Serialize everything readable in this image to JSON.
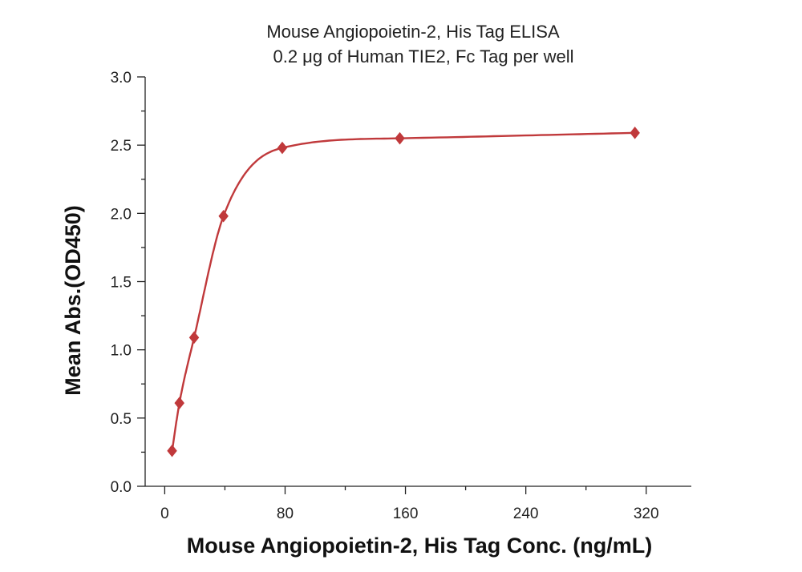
{
  "chart_data": {
    "type": "scatter",
    "title": "Mouse Angiopoietin-2, His Tag ELISA",
    "subtitle": "0.2 μg of Human TIE2, Fc Tag per well",
    "xlabel": "Mouse Angiopoietin-2, His Tag Conc. (ng/mL)",
    "ylabel": "Mean Abs.(OD450)",
    "xlim": [
      -13,
      350
    ],
    "ylim": [
      0,
      3.0
    ],
    "x_ticks": [
      0,
      80,
      160,
      240,
      320
    ],
    "y_ticks": [
      0.0,
      0.5,
      1.0,
      1.5,
      2.0,
      2.5,
      3.0
    ],
    "x_tick_labels": [
      "0",
      "80",
      "160",
      "240",
      "320"
    ],
    "y_tick_labels": [
      "0.0",
      "0.5",
      "1.0",
      "1.5",
      "2.0",
      "2.5",
      "3.0"
    ],
    "grid": false,
    "series": [
      {
        "marker": "diamond",
        "color": "#c0393b",
        "x": [
          4.88,
          9.77,
          19.53,
          39.06,
          78.13,
          156.25,
          312.5
        ],
        "y": [
          0.26,
          0.61,
          1.09,
          1.98,
          2.48,
          2.55,
          2.59
        ],
        "fit_curve": true
      }
    ]
  }
}
